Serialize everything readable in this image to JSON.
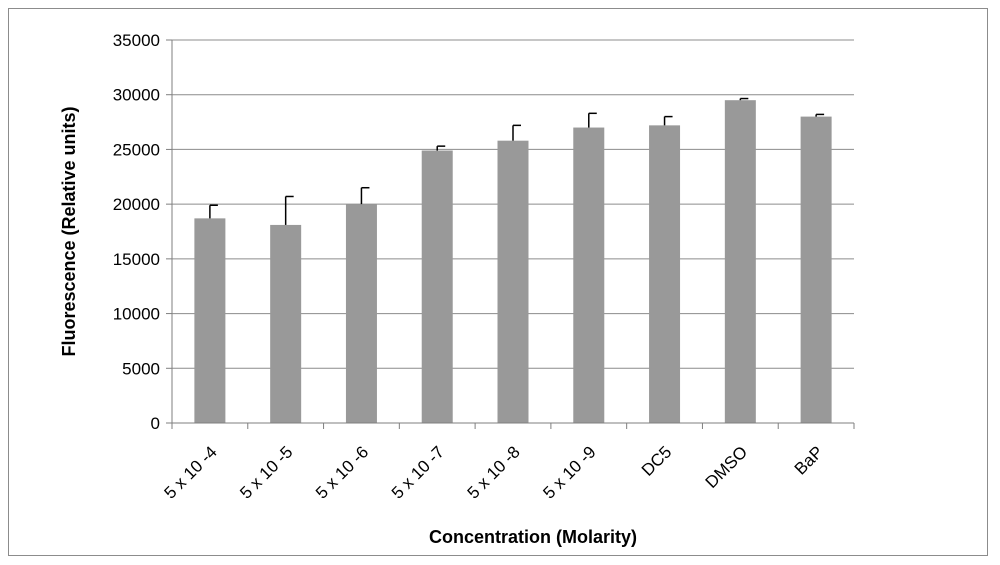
{
  "chart_data": {
    "type": "bar",
    "title": "",
    "xlabel": "Concentration (Molarity)",
    "ylabel": "Fluorescence (Relative units)",
    "ylim": [
      0,
      35000
    ],
    "yticks": [
      0,
      5000,
      10000,
      15000,
      20000,
      25000,
      30000,
      35000
    ],
    "grid": true,
    "categories": [
      "5 x 10 -4",
      "5 x 10 -5",
      "5 x 10 -6",
      "5 x 10 -7",
      "5 x 10 -8",
      "5 x 10 -9",
      "DC5",
      "DMSO",
      "BaP"
    ],
    "values": [
      18700,
      18100,
      20000,
      24900,
      25800,
      27000,
      27200,
      29500,
      28000
    ],
    "error_upper": [
      1200,
      2600,
      1500,
      400,
      1400,
      1300,
      800,
      150,
      200
    ],
    "colors": {
      "bar": "#999999",
      "grid": "#8c8c8c",
      "axis": "#7f7f7f",
      "error": "#000000"
    }
  }
}
